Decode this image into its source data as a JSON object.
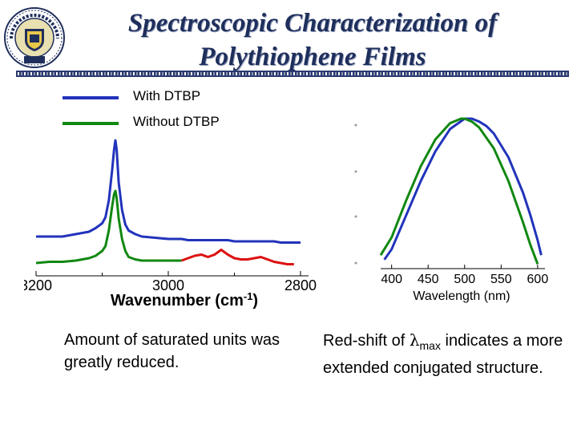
{
  "slide": {
    "title_line1": "Spectroscopic Characterization of",
    "title_line2": "Polythiophene Films",
    "seal_text": "THE UNIVERSITY OF AKRON 1870"
  },
  "colors": {
    "with": "#2233bb",
    "without": "#118811",
    "red": "#dd1111",
    "title": "#1f2f5c"
  },
  "legend": [
    {
      "label": "With DTBP",
      "color": "#2233bb"
    },
    {
      "label": "Without DTBP",
      "color": "#118811"
    }
  ],
  "caption_left": "Amount of saturated units was greatly reduced.",
  "caption_right": {
    "prefix": "Red-shift of ",
    "lambda": "λ",
    "sub": "max",
    "suffix": " indicates a more extended conjugated structure."
  },
  "chart_data": [
    {
      "type": "line",
      "xlabel": "Wavenumber (cm-1)",
      "xlim": [
        3200,
        2800
      ],
      "x_reversed": true,
      "xticks": [
        3200,
        3000,
        2800
      ],
      "xticklabels": [
        "3200",
        "3000",
        "2800"
      ],
      "y_axis_shown": false,
      "series": [
        {
          "name": "With DTBP",
          "color": "#2233bb",
          "x": [
            3200,
            3180,
            3160,
            3140,
            3120,
            3110,
            3100,
            3095,
            3090,
            3085,
            3082,
            3080,
            3078,
            3075,
            3070,
            3065,
            3060,
            3050,
            3040,
            3020,
            3000,
            2990,
            2980,
            2970,
            2960,
            2950,
            2940,
            2930,
            2920,
            2910,
            2900,
            2890,
            2880,
            2870,
            2860,
            2850,
            2840,
            2830,
            2820,
            2810,
            2800
          ],
          "y": [
            0.2,
            0.2,
            0.2,
            0.22,
            0.24,
            0.27,
            0.31,
            0.36,
            0.5,
            0.75,
            0.92,
            1.0,
            0.92,
            0.65,
            0.42,
            0.3,
            0.25,
            0.22,
            0.2,
            0.19,
            0.18,
            0.18,
            0.18,
            0.17,
            0.17,
            0.17,
            0.17,
            0.17,
            0.17,
            0.17,
            0.16,
            0.16,
            0.16,
            0.16,
            0.16,
            0.16,
            0.16,
            0.15,
            0.15,
            0.15,
            0.15
          ]
        },
        {
          "name": "Without DTBP",
          "color": "#118811",
          "x": [
            3200,
            3180,
            3160,
            3140,
            3120,
            3110,
            3100,
            3095,
            3090,
            3085,
            3082,
            3080,
            3078,
            3075,
            3070,
            3065,
            3060,
            3050,
            3040,
            3020,
            3010,
            3000,
            2990,
            2980
          ],
          "y": [
            -0.02,
            -0.01,
            -0.01,
            0.0,
            0.02,
            0.04,
            0.08,
            0.12,
            0.25,
            0.45,
            0.55,
            0.58,
            0.52,
            0.35,
            0.18,
            0.08,
            0.03,
            0.01,
            0.0,
            0.0,
            0.0,
            0.0,
            0.0,
            0.0
          ]
        },
        {
          "name": "",
          "color": "#dd1111",
          "x": [
            2980,
            2970,
            2960,
            2950,
            2940,
            2930,
            2920,
            2910,
            2900,
            2890,
            2880,
            2870,
            2860,
            2850,
            2840,
            2830,
            2820,
            2810
          ],
          "y": [
            0.0,
            0.02,
            0.04,
            0.05,
            0.03,
            0.05,
            0.09,
            0.05,
            0.02,
            0.01,
            0.01,
            0.02,
            0.03,
            0.01,
            -0.01,
            -0.02,
            -0.03,
            -0.03
          ]
        }
      ]
    },
    {
      "type": "line",
      "xlabel": "Wavelength (nm)",
      "xlim": [
        385,
        610
      ],
      "xticks": [
        400,
        450,
        500,
        550,
        600
      ],
      "xticklabels": [
        "400",
        "450",
        "500",
        "550",
        "600"
      ],
      "y_axis_shown": false,
      "series": [
        {
          "name": "With DTBP",
          "color": "#2233bb",
          "x": [
            390,
            400,
            420,
            440,
            460,
            480,
            500,
            510,
            520,
            530,
            540,
            560,
            580,
            590,
            600,
            605
          ],
          "y": [
            0.05,
            0.12,
            0.35,
            0.58,
            0.78,
            0.93,
            1.0,
            1.0,
            0.98,
            0.95,
            0.9,
            0.74,
            0.5,
            0.35,
            0.18,
            0.08
          ]
        },
        {
          "name": "Without DTBP",
          "color": "#118811",
          "x": [
            385,
            400,
            420,
            440,
            460,
            480,
            495,
            500,
            510,
            520,
            540,
            560,
            580,
            590,
            600
          ],
          "y": [
            0.08,
            0.2,
            0.45,
            0.68,
            0.86,
            0.97,
            1.0,
            1.0,
            0.98,
            0.94,
            0.8,
            0.58,
            0.3,
            0.15,
            0.02
          ]
        }
      ]
    }
  ]
}
